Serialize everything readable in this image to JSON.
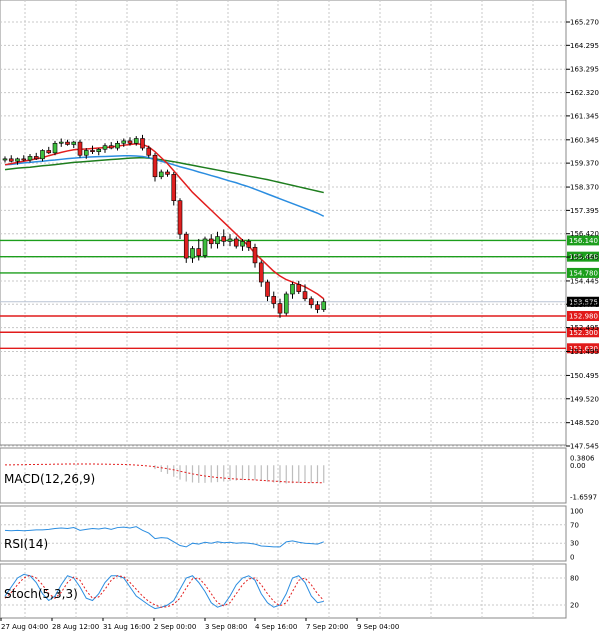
{
  "chart_data": {
    "type": "candlestick",
    "main": {
      "price_ticks": [
        "165.270",
        "164.295",
        "163.295",
        "162.320",
        "161.345",
        "160.345",
        "159.370",
        "158.370",
        "157.395",
        "156.420",
        "155.445",
        "154.445",
        "153.470",
        "152.495",
        "151.495",
        "150.495",
        "149.520",
        "148.520",
        "147.545"
      ],
      "ylim": [
        147.545,
        165.27
      ],
      "candles": [
        {
          "o": 159.5,
          "h": 159.65,
          "l": 159.4,
          "c": 159.55
        },
        {
          "o": 159.55,
          "h": 159.7,
          "l": 159.4,
          "c": 159.45
        },
        {
          "o": 159.45,
          "h": 159.6,
          "l": 159.3,
          "c": 159.55
        },
        {
          "o": 159.55,
          "h": 159.7,
          "l": 159.45,
          "c": 159.5
        },
        {
          "o": 159.5,
          "h": 159.75,
          "l": 159.4,
          "c": 159.65
        },
        {
          "o": 159.65,
          "h": 159.8,
          "l": 159.5,
          "c": 159.55
        },
        {
          "o": 159.55,
          "h": 159.95,
          "l": 159.45,
          "c": 159.9
        },
        {
          "o": 159.9,
          "h": 160.05,
          "l": 159.75,
          "c": 159.8
        },
        {
          "o": 159.8,
          "h": 160.3,
          "l": 159.7,
          "c": 160.2
        },
        {
          "o": 160.2,
          "h": 160.4,
          "l": 160.05,
          "c": 160.25
        },
        {
          "o": 160.25,
          "h": 160.35,
          "l": 160.1,
          "c": 160.15
        },
        {
          "o": 160.15,
          "h": 160.3,
          "l": 160.0,
          "c": 160.25
        },
        {
          "o": 160.25,
          "h": 160.35,
          "l": 159.6,
          "c": 159.7
        },
        {
          "o": 159.7,
          "h": 160.0,
          "l": 159.55,
          "c": 159.9
        },
        {
          "o": 159.9,
          "h": 160.1,
          "l": 159.75,
          "c": 159.85
        },
        {
          "o": 159.85,
          "h": 160.0,
          "l": 159.7,
          "c": 159.95
        },
        {
          "o": 159.95,
          "h": 160.2,
          "l": 159.8,
          "c": 160.1
        },
        {
          "o": 160.1,
          "h": 160.25,
          "l": 159.95,
          "c": 160.0
        },
        {
          "o": 160.0,
          "h": 160.3,
          "l": 159.9,
          "c": 160.2
        },
        {
          "o": 160.2,
          "h": 160.4,
          "l": 160.05,
          "c": 160.3
        },
        {
          "o": 160.3,
          "h": 160.45,
          "l": 160.1,
          "c": 160.2
        },
        {
          "o": 160.2,
          "h": 160.5,
          "l": 160.1,
          "c": 160.4
        },
        {
          "o": 160.4,
          "h": 160.55,
          "l": 159.9,
          "c": 160.0
        },
        {
          "o": 160.0,
          "h": 160.1,
          "l": 159.6,
          "c": 159.7
        },
        {
          "o": 159.7,
          "h": 159.8,
          "l": 158.6,
          "c": 158.8
        },
        {
          "o": 158.8,
          "h": 159.1,
          "l": 158.7,
          "c": 159.0
        },
        {
          "o": 159.0,
          "h": 159.1,
          "l": 158.8,
          "c": 158.9
        },
        {
          "o": 158.9,
          "h": 159.0,
          "l": 157.6,
          "c": 157.8
        },
        {
          "o": 157.8,
          "h": 157.9,
          "l": 156.2,
          "c": 156.4
        },
        {
          "o": 156.4,
          "h": 156.5,
          "l": 155.2,
          "c": 155.4
        },
        {
          "o": 155.4,
          "h": 155.9,
          "l": 155.2,
          "c": 155.8
        },
        {
          "o": 155.8,
          "h": 156.2,
          "l": 155.3,
          "c": 155.5
        },
        {
          "o": 155.5,
          "h": 156.3,
          "l": 155.4,
          "c": 156.2
        },
        {
          "o": 156.2,
          "h": 156.4,
          "l": 155.8,
          "c": 156.0
        },
        {
          "o": 156.0,
          "h": 156.5,
          "l": 155.8,
          "c": 156.3
        },
        {
          "o": 156.3,
          "h": 156.6,
          "l": 155.9,
          "c": 156.1
        },
        {
          "o": 156.1,
          "h": 156.4,
          "l": 155.9,
          "c": 156.2
        },
        {
          "o": 156.2,
          "h": 156.3,
          "l": 155.8,
          "c": 155.9
        },
        {
          "o": 155.9,
          "h": 156.2,
          "l": 155.7,
          "c": 156.1
        },
        {
          "o": 156.1,
          "h": 156.2,
          "l": 155.7,
          "c": 155.85
        },
        {
          "o": 155.85,
          "h": 156.0,
          "l": 155.0,
          "c": 155.2
        },
        {
          "o": 155.2,
          "h": 155.3,
          "l": 154.2,
          "c": 154.4
        },
        {
          "o": 154.4,
          "h": 154.5,
          "l": 153.6,
          "c": 153.8
        },
        {
          "o": 153.8,
          "h": 154.0,
          "l": 153.3,
          "c": 153.5
        },
        {
          "o": 153.5,
          "h": 153.7,
          "l": 152.9,
          "c": 153.1
        },
        {
          "o": 153.1,
          "h": 154.0,
          "l": 153.0,
          "c": 153.9
        },
        {
          "o": 153.9,
          "h": 154.4,
          "l": 153.7,
          "c": 154.3
        },
        {
          "o": 154.3,
          "h": 154.45,
          "l": 153.9,
          "c": 154.0
        },
        {
          "o": 154.0,
          "h": 154.3,
          "l": 153.6,
          "c": 153.7
        },
        {
          "o": 153.7,
          "h": 153.8,
          "l": 153.3,
          "c": 153.45
        },
        {
          "o": 153.45,
          "h": 153.6,
          "l": 153.1,
          "c": 153.25
        },
        {
          "o": 153.25,
          "h": 153.7,
          "l": 153.15,
          "c": 153.575
        }
      ],
      "ma_fast": [
        159.3,
        159.35,
        159.4,
        159.45,
        159.5,
        159.55,
        159.6,
        159.68,
        159.75,
        159.82,
        159.88,
        159.93,
        159.95,
        159.96,
        159.98,
        160.0,
        160.02,
        160.05,
        160.08,
        160.12,
        160.15,
        160.18,
        160.15,
        160.05,
        159.85,
        159.6,
        159.35,
        159.05,
        158.75,
        158.45,
        158.15,
        157.9,
        157.65,
        157.4,
        157.15,
        156.9,
        156.65,
        156.4,
        156.15,
        155.9,
        155.6,
        155.35,
        155.1,
        154.85,
        154.65,
        154.5,
        154.4,
        154.3,
        154.2,
        154.05,
        153.9,
        153.7
      ],
      "ma_mid": [
        159.3,
        159.32,
        159.35,
        159.38,
        159.4,
        159.43,
        159.45,
        159.48,
        159.5,
        159.53,
        159.56,
        159.58,
        159.6,
        159.62,
        159.63,
        159.64,
        159.65,
        159.66,
        159.67,
        159.68,
        159.68,
        159.67,
        159.65,
        159.6,
        159.52,
        159.45,
        159.38,
        159.3,
        159.22,
        159.15,
        159.08,
        159.0,
        158.93,
        158.85,
        158.78,
        158.7,
        158.62,
        158.55,
        158.46,
        158.38,
        158.28,
        158.18,
        158.08,
        157.98,
        157.88,
        157.78,
        157.68,
        157.58,
        157.48,
        157.38,
        157.28,
        157.15
      ],
      "ma_slow": [
        159.1,
        159.13,
        159.16,
        159.18,
        159.2,
        159.23,
        159.26,
        159.28,
        159.31,
        159.34,
        159.37,
        159.4,
        159.42,
        159.44,
        159.46,
        159.48,
        159.5,
        159.52,
        159.54,
        159.56,
        159.58,
        159.59,
        159.6,
        159.58,
        159.55,
        159.51,
        159.47,
        159.43,
        159.38,
        159.33,
        159.28,
        159.23,
        159.18,
        159.13,
        159.08,
        159.03,
        158.98,
        158.93,
        158.88,
        158.83,
        158.78,
        158.73,
        158.68,
        158.62,
        158.56,
        158.5,
        158.44,
        158.38,
        158.32,
        158.26,
        158.2,
        158.14
      ],
      "levels": [
        {
          "value": 156.14,
          "label": "156.140",
          "color": "#1c9e1c"
        },
        {
          "value": 155.46,
          "label": "155.460",
          "color": "#1c9e1c"
        },
        {
          "value": 154.78,
          "label": "154.780",
          "color": "#1c9e1c"
        },
        {
          "value": 152.98,
          "label": "152.980",
          "color": "#e11b1b"
        },
        {
          "value": 152.3,
          "label": "152.300",
          "color": "#e11b1b"
        },
        {
          "value": 151.63,
          "label": "151.630",
          "color": "#e11b1b"
        }
      ],
      "current_price": {
        "value": 153.575,
        "label": "153.575"
      }
    },
    "macd": {
      "label": "MACD(12,26,9)",
      "ticks": [
        "0.3806",
        "0.00",
        "-1.6597"
      ],
      "ylim": [
        -1.6597,
        0.3806
      ],
      "hist": [
        0,
        0,
        0,
        0,
        0,
        0,
        0,
        0,
        0,
        0,
        0,
        0,
        0,
        0,
        0,
        0,
        0,
        0,
        0,
        0,
        0,
        0,
        0,
        0,
        -0.2,
        -0.35,
        -0.45,
        -0.6,
        -0.75,
        -0.85,
        -0.9,
        -0.92,
        -0.92,
        -0.9,
        -0.88,
        -0.85,
        -0.82,
        -0.8,
        -0.78,
        -0.76,
        -0.78,
        -0.82,
        -0.86,
        -0.9,
        -0.94,
        -0.95,
        -0.94,
        -0.93,
        -0.92,
        -0.92,
        -0.92,
        -0.92
      ],
      "signal": [
        0.02,
        0.02,
        0.03,
        0.03,
        0.04,
        0.04,
        0.05,
        0.05,
        0.06,
        0.06,
        0.07,
        0.07,
        0.07,
        0.07,
        0.07,
        0.06,
        0.06,
        0.05,
        0.05,
        0.04,
        0.03,
        0.01,
        -0.01,
        -0.04,
        -0.08,
        -0.13,
        -0.18,
        -0.24,
        -0.31,
        -0.38,
        -0.45,
        -0.51,
        -0.56,
        -0.6,
        -0.64,
        -0.67,
        -0.7,
        -0.72,
        -0.74,
        -0.75,
        -0.77,
        -0.79,
        -0.81,
        -0.83,
        -0.85,
        -0.87,
        -0.88,
        -0.89,
        -0.9,
        -0.91,
        -0.91,
        -0.92
      ]
    },
    "rsi": {
      "label": "RSI(14)",
      "ticks": [
        "100",
        "70",
        "30",
        "0"
      ],
      "ylim": [
        0,
        100
      ],
      "values": [
        58,
        57,
        58,
        57,
        58,
        59,
        59,
        60,
        62,
        63,
        62,
        64,
        58,
        60,
        62,
        61,
        63,
        60,
        64,
        65,
        63,
        66,
        58,
        52,
        40,
        42,
        41,
        33,
        25,
        22,
        30,
        28,
        32,
        30,
        33,
        31,
        32,
        30,
        31,
        30,
        28,
        24,
        23,
        22,
        22,
        33,
        35,
        32,
        30,
        29,
        28,
        33
      ]
    },
    "stoch": {
      "label": "Stoch(5,3,3)",
      "ticks": [
        "80",
        "20"
      ],
      "ylim": [
        0,
        100
      ],
      "k": [
        40,
        60,
        80,
        88,
        85,
        70,
        45,
        30,
        40,
        65,
        85,
        80,
        60,
        35,
        30,
        45,
        70,
        85,
        85,
        80,
        60,
        40,
        30,
        20,
        12,
        15,
        20,
        30,
        55,
        80,
        85,
        70,
        50,
        25,
        15,
        20,
        40,
        65,
        80,
        85,
        75,
        45,
        25,
        15,
        20,
        45,
        80,
        85,
        70,
        40,
        25,
        28
      ],
      "d": [
        35,
        48,
        65,
        80,
        86,
        80,
        65,
        45,
        35,
        48,
        70,
        82,
        75,
        52,
        35,
        38,
        55,
        75,
        85,
        83,
        70,
        55,
        40,
        28,
        20,
        15,
        16,
        22,
        35,
        58,
        78,
        80,
        65,
        45,
        25,
        18,
        25,
        45,
        65,
        78,
        80,
        65,
        45,
        28,
        18,
        25,
        50,
        75,
        80,
        65,
        45,
        30
      ]
    },
    "x_ticks": [
      "27 Aug 04:00",
      "28 Aug 12:00",
      "31 Aug 16:00",
      "2 Sep 00:00",
      "3 Sep 08:00",
      "4 Sep 16:00",
      "7 Sep 20:00",
      "9 Sep 04:00"
    ]
  }
}
